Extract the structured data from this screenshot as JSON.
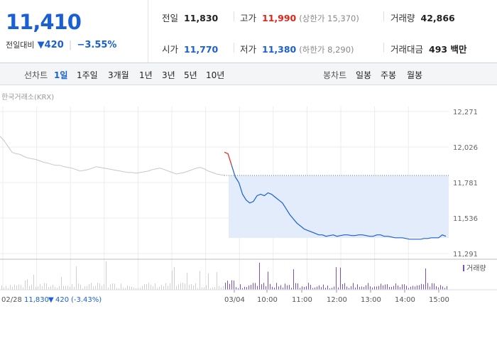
{
  "summary": {
    "price": "11,410",
    "change_label": "전일대비",
    "change_arrow": "▼",
    "change_value": "420",
    "change_pct": "−3.55%",
    "prev_close_label": "전일",
    "prev_close": "11,830",
    "open_label": "시가",
    "open": "11,770",
    "high_label": "고가",
    "high": "11,990",
    "upper_limit": "(상한가 15,370)",
    "low_label": "저가",
    "low": "11,380",
    "lower_limit": "(하한가 8,290)",
    "volume_label": "거래량",
    "volume": "42,866",
    "amount_label": "거래대금",
    "amount": "493 백만"
  },
  "toolbar": {
    "line_chart_label": "선차트",
    "ranges": [
      "1일",
      "1주일",
      "3개월",
      "1년",
      "3년",
      "5년",
      "10년"
    ],
    "active_range": "1일",
    "candle_label": "봉차트",
    "candles": [
      "일봉",
      "주봉",
      "월봉"
    ]
  },
  "chart_data": {
    "type": "line",
    "source": "한국거래소(KRX)",
    "y_ticks": [
      "12,271",
      "12,026",
      "11,781",
      "11,536",
      "11,291"
    ],
    "ylim": [
      11291,
      12271
    ],
    "prev_close": 11830,
    "x_ticks": [
      "03/04",
      "10:00",
      "11:00",
      "12:00",
      "13:00",
      "14:00",
      "15:00"
    ],
    "prev_day_label": "02/28",
    "prev_day_close": "11,830",
    "prev_day_arrow": "▼",
    "prev_day_change": "420",
    "prev_day_pct": "(-3.43%)",
    "volume_legend": "거래량",
    "prev_day_series": [
      12100,
      12070,
      12030,
      11990,
      11980,
      11975,
      11960,
      11950,
      11945,
      11940,
      11930,
      11920,
      11915,
      11905,
      11900,
      11900,
      11890,
      11885,
      11880,
      11870,
      11860,
      11865,
      11870,
      11880,
      11890,
      11885,
      11880,
      11875,
      11870,
      11865,
      11860,
      11855,
      11850,
      11850,
      11845,
      11850,
      11855,
      11860,
      11870,
      11875,
      11880,
      11870,
      11860,
      11850,
      11840,
      11845,
      11850,
      11860,
      11870,
      11880,
      11885,
      11875,
      11860,
      11850,
      11840,
      11835,
      11830
    ],
    "today_series": [
      11990,
      11980,
      11900,
      11820,
      11780,
      11700,
      11660,
      11640,
      11650,
      11690,
      11700,
      11690,
      11710,
      11700,
      11680,
      11660,
      11640,
      11600,
      11560,
      11530,
      11500,
      11480,
      11460,
      11450,
      11440,
      11430,
      11420,
      11420,
      11410,
      11415,
      11420,
      11410,
      11415,
      11420,
      11420,
      11415,
      11415,
      11420,
      11420,
      11415,
      11410,
      11410,
      11420,
      11420,
      11410,
      11410,
      11405,
      11400,
      11400,
      11400,
      11395,
      11390,
      11390,
      11390,
      11390,
      11395,
      11395,
      11400,
      11400,
      11400,
      11420,
      11410
    ],
    "colors": {
      "prev": "#c7c7c7",
      "up": "#e2231a",
      "down": "#1a5fd6",
      "fill": "#e3ecfa",
      "volume": "#7a4fbf"
    }
  }
}
